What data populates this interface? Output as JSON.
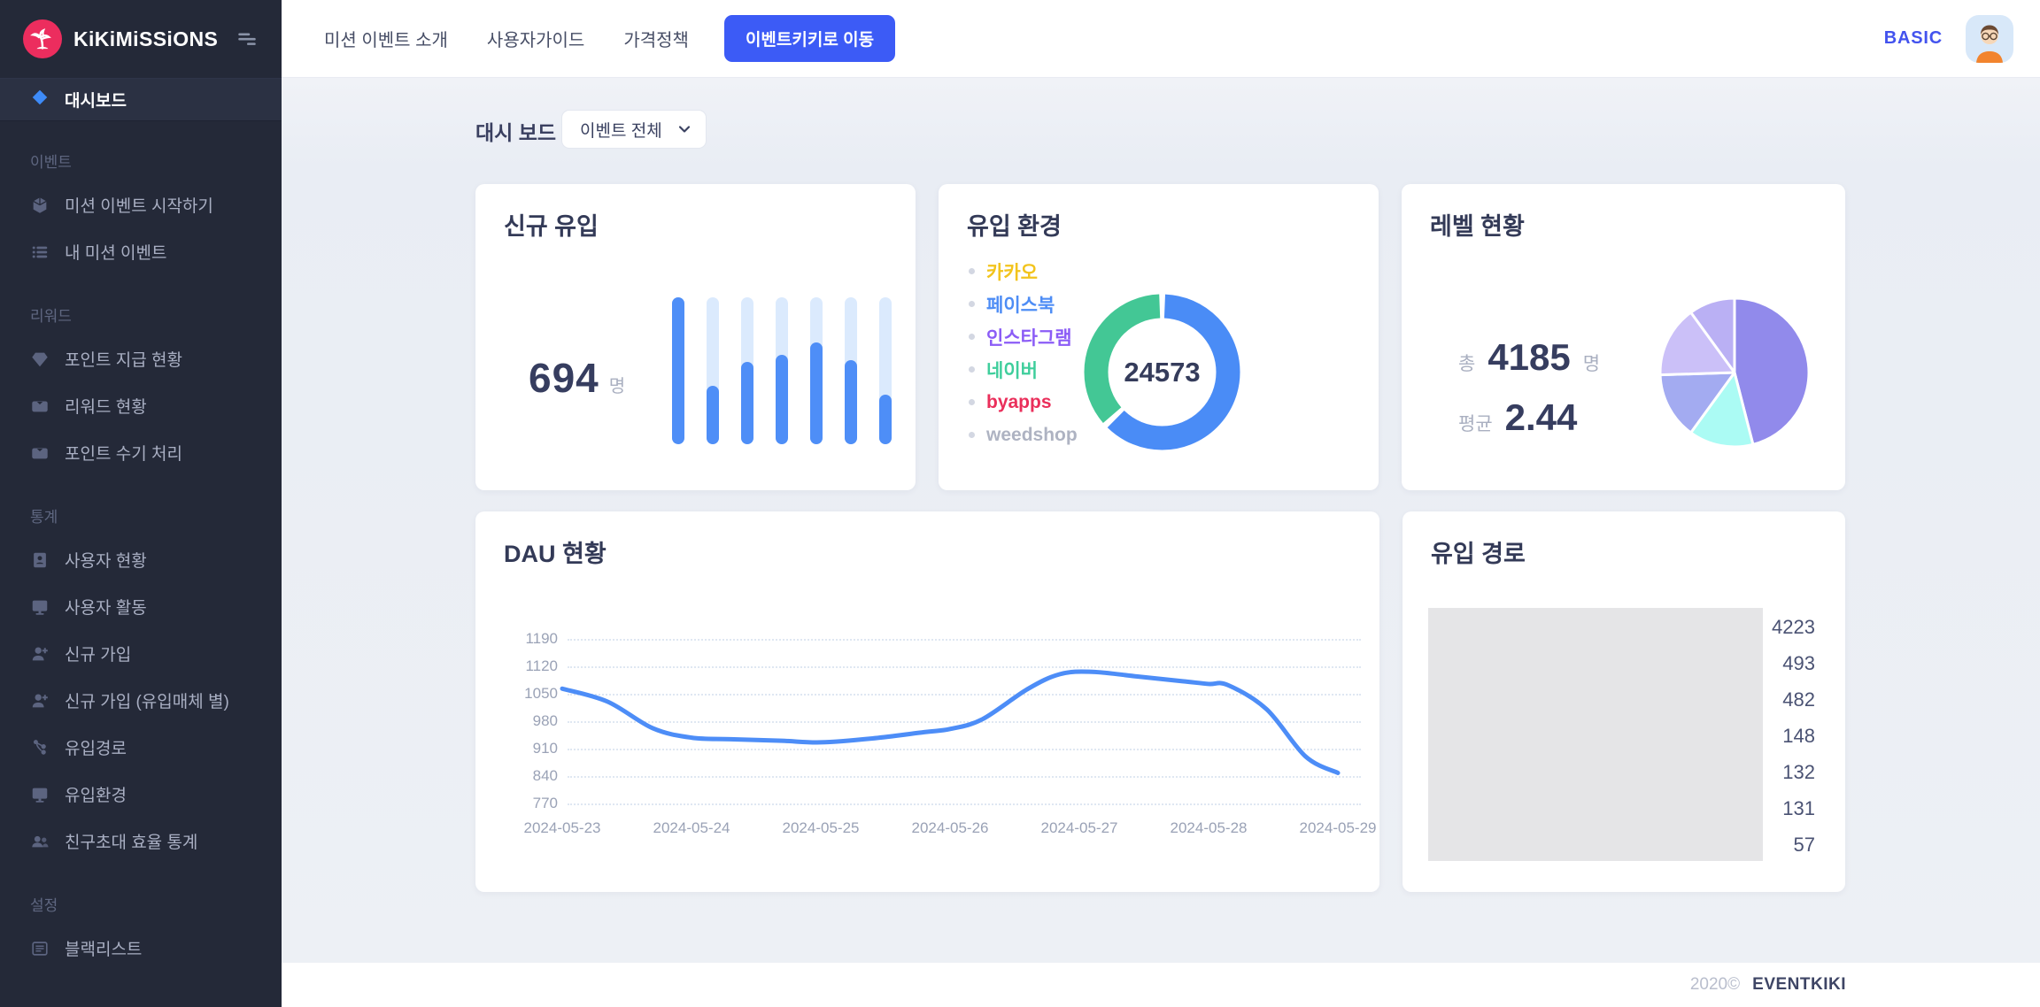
{
  "sidebar": {
    "logo_text": "KiKiMiSSiONS",
    "active_item": {
      "label": "대시보드",
      "icon": "diamond"
    },
    "sections": [
      {
        "label": "이벤트",
        "items": [
          {
            "label": "미션 이벤트 시작하기",
            "icon": "cube"
          },
          {
            "label": "내 미션 이벤트",
            "icon": "list"
          }
        ]
      },
      {
        "label": "리워드",
        "items": [
          {
            "label": "포인트 지급 현황",
            "icon": "gem"
          },
          {
            "label": "리워드 현황",
            "icon": "wallet"
          },
          {
            "label": "포인트 수기 처리",
            "icon": "wallet"
          }
        ]
      },
      {
        "label": "통계",
        "items": [
          {
            "label": "사용자 현황",
            "icon": "id-card"
          },
          {
            "label": "사용자 활동",
            "icon": "monitor"
          },
          {
            "label": "신규 가입",
            "icon": "user-plus"
          },
          {
            "label": "신규 가입 (유입매체 별)",
            "icon": "user-plus"
          },
          {
            "label": "유입경로",
            "icon": "sitemap"
          },
          {
            "label": "유입환경",
            "icon": "monitor"
          },
          {
            "label": "친구초대 효율 통계",
            "icon": "users"
          }
        ]
      },
      {
        "label": "설정",
        "items": [
          {
            "label": "블랙리스트",
            "icon": "list-box"
          }
        ]
      }
    ]
  },
  "topbar": {
    "nav": [
      "미션 이벤트 소개",
      "사용자가이드",
      "가격정책"
    ],
    "cta": "이벤트키키로 이동",
    "plan": "BASIC"
  },
  "page": {
    "title": "대시 보드",
    "filter_value": "이벤트 전체"
  },
  "cards": {
    "new_users": {
      "title": "신규 유입",
      "unit": "명"
    },
    "env": {
      "title": "유입 환경"
    },
    "level": {
      "title": "레벨 현황",
      "total_label": "총",
      "unit": "명",
      "avg_label": "평균"
    },
    "dau": {
      "title": "DAU 현황"
    },
    "paths": {
      "title": "유입 경로"
    }
  },
  "chart_data": [
    {
      "id": "new-users-bars",
      "type": "bar",
      "title": "신규 유입",
      "total": "694",
      "values_pct": [
        100,
        40,
        56,
        61,
        69,
        57,
        34
      ],
      "fill_color": "#4E8EF7",
      "track_color": "#DBEAFD"
    },
    {
      "id": "env-donut",
      "type": "pie",
      "title": "유입 환경",
      "center_total": "24573",
      "segments": [
        {
          "name": "segment-blue",
          "value": 63,
          "color": "#4A8CF6"
        },
        {
          "name": "segment-mint",
          "value": 37,
          "color": "#43C795"
        }
      ],
      "legend": [
        {
          "label": "카카오",
          "color": "#F2C41D"
        },
        {
          "label": "페이스북",
          "color": "#4E8DF5"
        },
        {
          "label": "인스타그램",
          "color": "#8B5CF6"
        },
        {
          "label": "네이버",
          "color": "#3FCE9C"
        },
        {
          "label": "byapps",
          "color": "#EA2F5B"
        },
        {
          "label": "weedshop",
          "color": "#AEB3C2"
        }
      ]
    },
    {
      "id": "level-pie",
      "type": "pie",
      "title": "레벨 현황",
      "total": "4185",
      "average": "2.44",
      "segments": [
        {
          "value": 46,
          "color": "#918AEB"
        },
        {
          "value": 14,
          "color": "#ABFBF4"
        },
        {
          "value": 14.5,
          "color": "#A3ABF1"
        },
        {
          "value": 15.5,
          "color": "#CBC0F8"
        },
        {
          "value": 10,
          "color": "#BAB0F4"
        }
      ]
    },
    {
      "id": "dau-line",
      "type": "line",
      "title": "DAU 현황",
      "x_labels": [
        "2024-05-23",
        "2024-05-24",
        "2024-05-25",
        "2024-05-26",
        "2024-05-27",
        "2024-05-28",
        "2024-05-29"
      ],
      "y_ticks": [
        1190,
        1120,
        1050,
        980,
        910,
        840,
        770
      ],
      "ylim": [
        770,
        1190
      ],
      "grid": true,
      "color": "#4D8DF7",
      "points": [
        {
          "x": 0,
          "y": 1063
        },
        {
          "x": 0.35,
          "y": 1030
        },
        {
          "x": 0.7,
          "y": 962
        },
        {
          "x": 1,
          "y": 938
        },
        {
          "x": 1.3,
          "y": 934
        },
        {
          "x": 1.7,
          "y": 930
        },
        {
          "x": 2,
          "y": 926
        },
        {
          "x": 2.4,
          "y": 936
        },
        {
          "x": 2.8,
          "y": 952
        },
        {
          "x": 3,
          "y": 960
        },
        {
          "x": 3.25,
          "y": 985
        },
        {
          "x": 3.6,
          "y": 1062
        },
        {
          "x": 3.85,
          "y": 1100
        },
        {
          "x": 4.1,
          "y": 1106
        },
        {
          "x": 4.45,
          "y": 1094
        },
        {
          "x": 4.8,
          "y": 1082
        },
        {
          "x": 5,
          "y": 1075
        },
        {
          "x": 5.15,
          "y": 1072
        },
        {
          "x": 5.45,
          "y": 1010
        },
        {
          "x": 5.75,
          "y": 890
        },
        {
          "x": 6,
          "y": 848
        }
      ]
    },
    {
      "id": "paths-list",
      "type": "table",
      "title": "유입 경로",
      "values": [
        4223,
        493,
        482,
        148,
        132,
        131,
        57
      ]
    }
  ],
  "footer": {
    "year": "2020©",
    "brand": "EVENTKIKI"
  }
}
